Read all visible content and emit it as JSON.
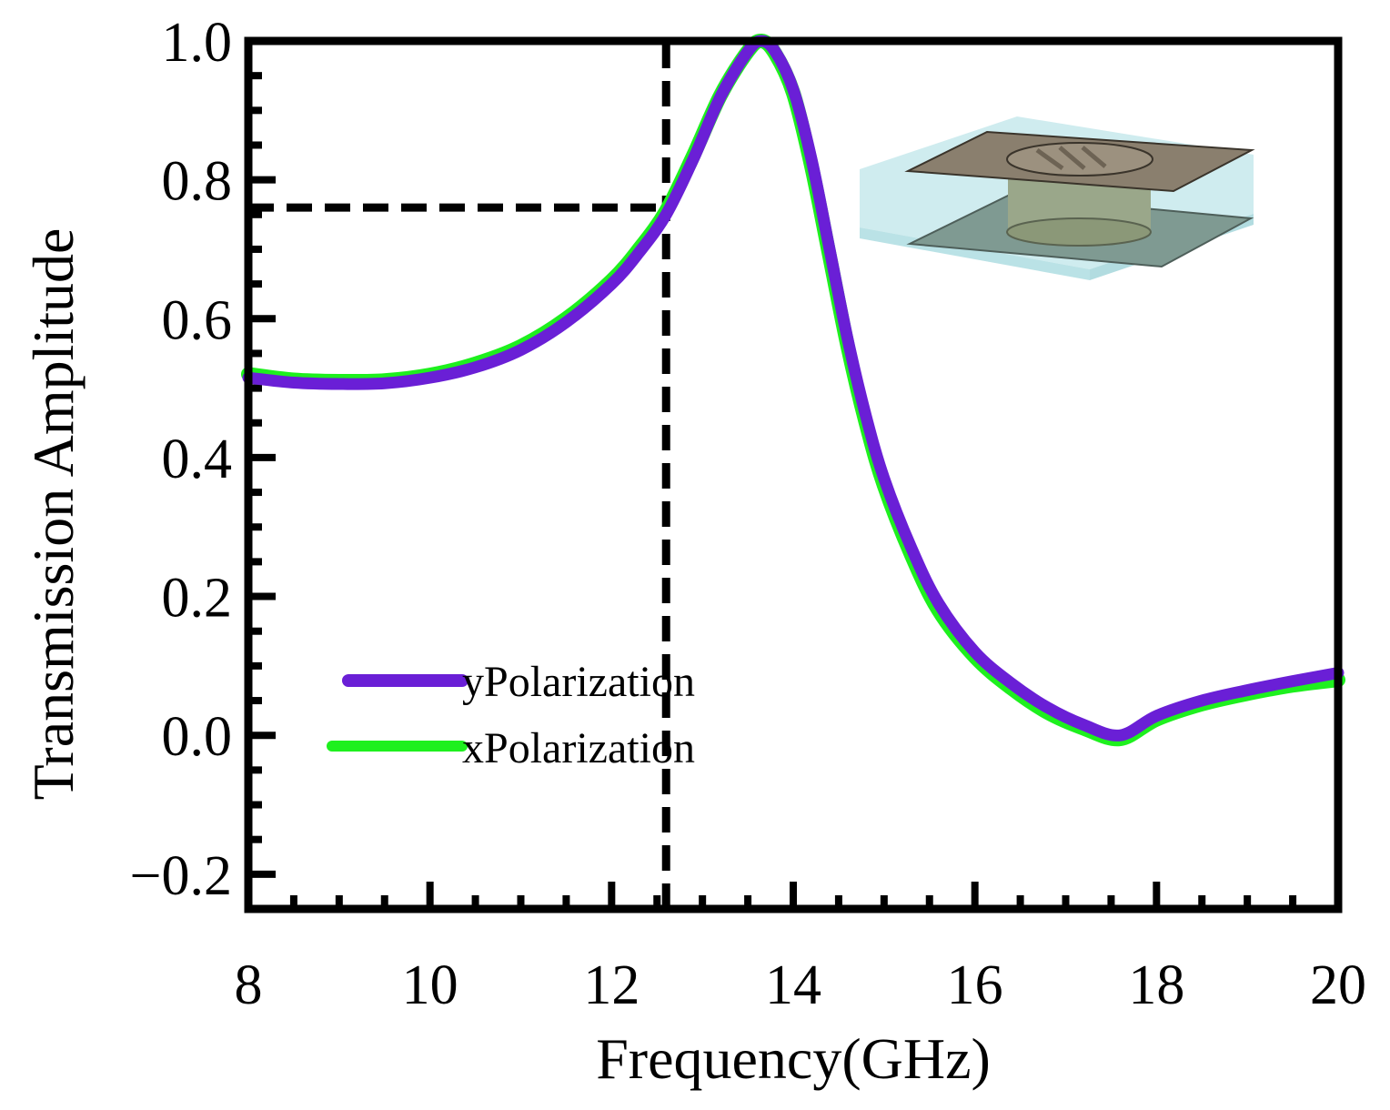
{
  "chart_data": {
    "type": "line",
    "title": "",
    "xlabel": "Frequency(GHz)",
    "ylabel": "Transmission Amplitude",
    "xlim": [
      8,
      20
    ],
    "ylim": [
      -0.25,
      1.0
    ],
    "grid": false,
    "x_ticks": [
      8,
      10,
      12,
      14,
      16,
      18,
      20
    ],
    "x_tick_labels": [
      "8",
      "10",
      "12",
      "14",
      "16",
      "18",
      "20"
    ],
    "y_ticks": [
      -0.2,
      0.0,
      0.2,
      0.4,
      0.6,
      0.8,
      1.0
    ],
    "y_tick_labels": [
      "−0.2",
      "0.0",
      "0.2",
      "0.4",
      "0.6",
      "0.8",
      "1.0"
    ],
    "legend_position": "lower-left",
    "series": [
      {
        "name": "yPolarization",
        "color": "#6a1fd6",
        "x": [
          8.0,
          8.5,
          9.0,
          9.5,
          10.0,
          10.5,
          11.0,
          11.5,
          12.0,
          12.3,
          12.6,
          12.9,
          13.2,
          13.5,
          13.65,
          13.8,
          14.0,
          14.2,
          14.4,
          14.6,
          14.8,
          15.0,
          15.3,
          15.6,
          16.0,
          16.4,
          16.8,
          17.2,
          17.6,
          18.0,
          18.5,
          19.0,
          19.5,
          20.0
        ],
        "y": [
          0.515,
          0.508,
          0.506,
          0.507,
          0.515,
          0.53,
          0.555,
          0.595,
          0.65,
          0.695,
          0.75,
          0.83,
          0.92,
          0.985,
          1.0,
          0.985,
          0.93,
          0.83,
          0.7,
          0.57,
          0.46,
          0.37,
          0.27,
          0.19,
          0.12,
          0.075,
          0.04,
          0.015,
          0.0,
          0.028,
          0.05,
          0.065,
          0.078,
          0.09
        ]
      },
      {
        "name": "xPolarization",
        "color": "#1ef01e",
        "x": [
          8.0,
          8.5,
          9.0,
          9.5,
          10.0,
          10.5,
          11.0,
          11.5,
          12.0,
          12.3,
          12.6,
          12.9,
          13.2,
          13.5,
          13.65,
          13.8,
          14.0,
          14.2,
          14.4,
          14.6,
          14.8,
          15.0,
          15.3,
          15.6,
          16.0,
          16.4,
          16.8,
          17.2,
          17.6,
          18.0,
          18.5,
          19.0,
          19.5,
          20.0
        ],
        "y": [
          0.52,
          0.512,
          0.51,
          0.511,
          0.519,
          0.535,
          0.56,
          0.6,
          0.655,
          0.7,
          0.755,
          0.835,
          0.922,
          0.985,
          1.0,
          0.982,
          0.925,
          0.82,
          0.69,
          0.56,
          0.45,
          0.36,
          0.26,
          0.18,
          0.113,
          0.068,
          0.033,
          0.01,
          -0.005,
          0.023,
          0.045,
          0.06,
          0.072,
          0.08
        ]
      }
    ],
    "reference_lines": [
      {
        "orientation": "vertical",
        "x": 12.6,
        "y_from": -0.25,
        "y_to": 1.0,
        "style": "dashed"
      },
      {
        "orientation": "horizontal",
        "y": 0.76,
        "x_from": 8.0,
        "x_to": 12.6,
        "style": "dashed"
      }
    ]
  },
  "inset": {
    "name": "unit-cell-illustration"
  }
}
